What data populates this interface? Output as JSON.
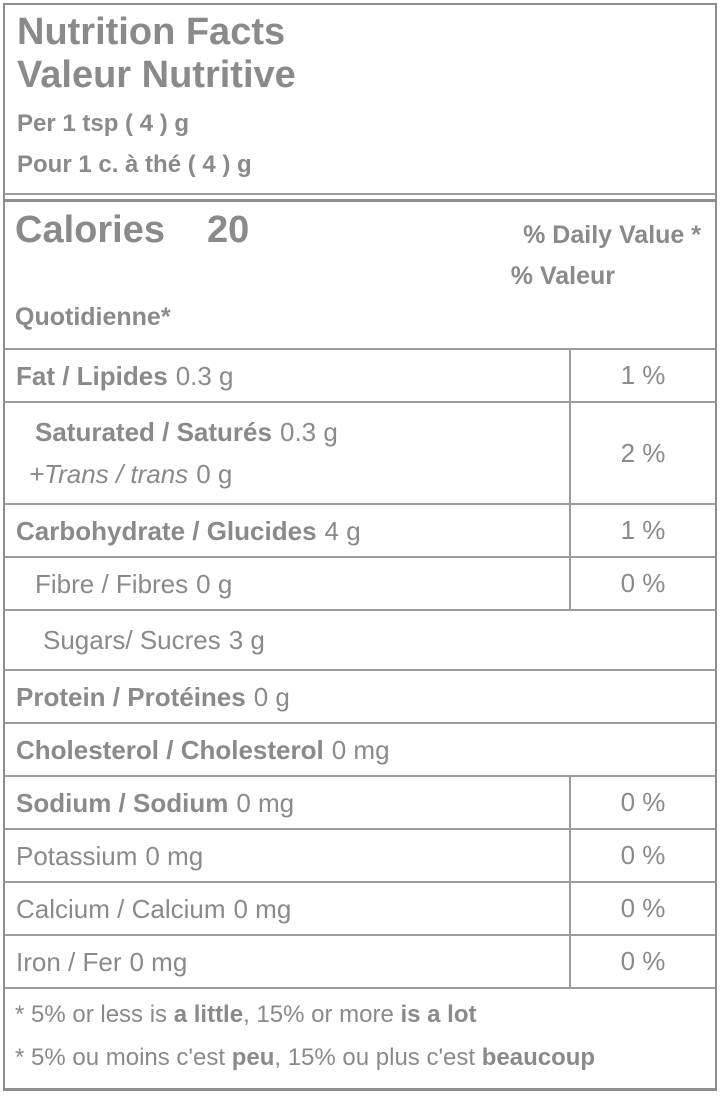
{
  "header": {
    "title_en": "Nutrition Facts",
    "title_fr": "Valeur Nutritive",
    "serving_en": "Per 1 tsp ( 4 ) g",
    "serving_fr": "Pour 1 c. à thé ( 4 ) g"
  },
  "calories": {
    "label": "Calories",
    "value": "20"
  },
  "daily_value_header": {
    "line1": "% Daily Value *",
    "line2": "% Valeur",
    "line3": "Quotidienne*"
  },
  "nutrients": [
    {
      "name": "Fat / Lipides",
      "amount": "0.3 g",
      "daily_value": "1 %"
    },
    {
      "name": "Saturated / Saturés",
      "amount": "0.3 g",
      "name2": "+Trans / trans",
      "amount2": "0 g",
      "daily_value": "2 %"
    },
    {
      "name": "Carbohydrate / Glucides",
      "amount": "4 g",
      "daily_value": "1 %"
    },
    {
      "name": "Fibre / Fibres",
      "amount": "0 g",
      "daily_value": "0 %"
    },
    {
      "name": "Sugars/ Sucres",
      "amount": "3 g"
    },
    {
      "name": "Protein / Protéines",
      "amount": "0 g"
    },
    {
      "name": "Cholesterol / Cholesterol",
      "amount": "0 mg"
    },
    {
      "name": "Sodium / Sodium",
      "amount": "0 mg",
      "daily_value": "0 %"
    },
    {
      "name": "Potassium",
      "amount": "0 mg",
      "daily_value": "0 %"
    },
    {
      "name": "Calcium / Calcium",
      "amount": "0 mg",
      "daily_value": "0 %"
    },
    {
      "name": "Iron / Fer",
      "amount": "0 mg",
      "daily_value": "0 %"
    }
  ],
  "footnotes": {
    "en": {
      "t1": "* 5% or less is ",
      "b1": "a little",
      "t2": ", 15% or more ",
      "b2": "is a lot"
    },
    "fr": {
      "t1": "* 5% ou moins c'est ",
      "b1": "peu",
      "t2": ", 15% ou plus c'est ",
      "b2": "beaucoup"
    }
  },
  "colors": {
    "text": "#8a8a8a",
    "border": "#9c9c9c",
    "background": "#ffffff"
  }
}
